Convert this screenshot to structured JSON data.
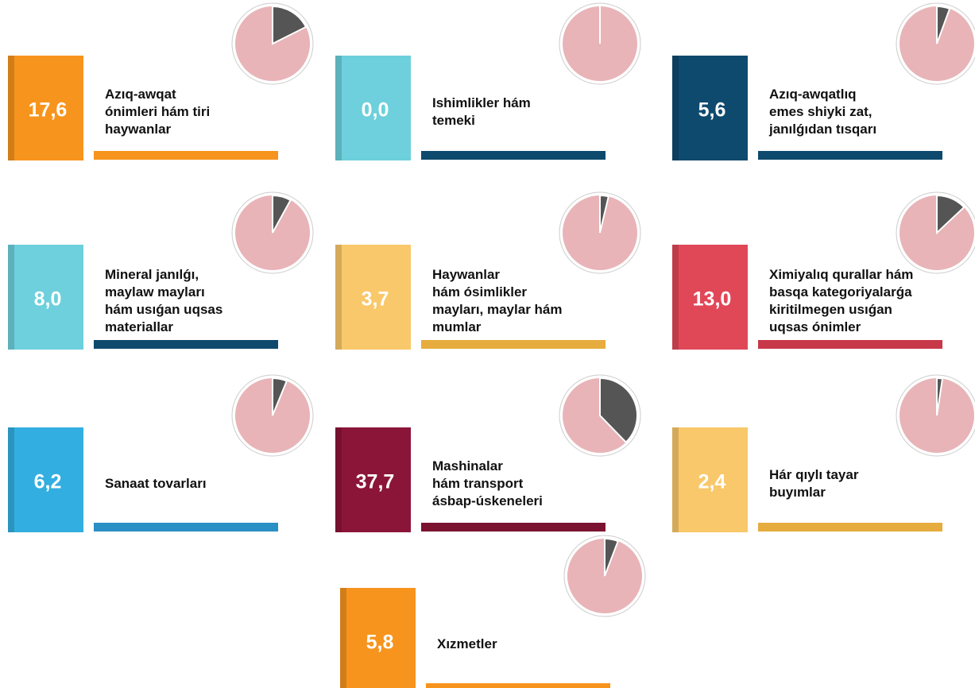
{
  "items": [
    {
      "value": 17.6,
      "value_label": "17,6",
      "label": [
        "Azıq-awqat",
        "ónimleri hám tiri",
        "haywanlar"
      ],
      "color": "#f7941d",
      "bar_color": "#f7941d"
    },
    {
      "value": 0.0,
      "value_label": "0,0",
      "label": [
        "Ishimlikler hám",
        "temeki"
      ],
      "color": "#6dd0dc",
      "bar_color": "#0e4a6e"
    },
    {
      "value": 5.6,
      "value_label": "5,6",
      "label": [
        "Azıq-awqatlıq",
        "emes shiyki zat,",
        "janılǵıdan tısqarı"
      ],
      "color": "#0e4a6e",
      "bar_color": "#0e4a6e"
    },
    {
      "value": 8.0,
      "value_label": "8,0",
      "label": [
        "Mineral janılǵı,",
        "maylaw mayları",
        "hám usıǵan uqsas",
        "materiallar"
      ],
      "color": "#6dd0dc",
      "bar_color": "#0e4a6e"
    },
    {
      "value": 3.7,
      "value_label": "3,7",
      "label": [
        "Haywanlar",
        "hám ósimlikler",
        "mayları, maylar hám",
        "mumlar"
      ],
      "color": "#f9c86a",
      "bar_color": "#e6ac3e"
    },
    {
      "value": 13.0,
      "value_label": "13,0",
      "label": [
        "Ximiyalıq qurallar hám",
        "basqa kategoriyalarǵa",
        "kiritilmegen usıǵan",
        "uqsas ónimler"
      ],
      "color": "#e04858",
      "bar_color": "#c73848"
    },
    {
      "value": 6.2,
      "value_label": "6,2",
      "label": [
        "Sanaat tovarları"
      ],
      "color": "#33aee0",
      "bar_color": "#2a8fc4"
    },
    {
      "value": 37.7,
      "value_label": "37,7",
      "label": [
        "Mashinalar",
        "hám transport",
        "ásbap-úskeneleri"
      ],
      "color": "#8b1538",
      "bar_color": "#7a1230"
    },
    {
      "value": 2.4,
      "value_label": "2,4",
      "label": [
        "Hár qıylı tayar",
        "buyımlar"
      ],
      "color": "#f9c86a",
      "bar_color": "#e6ac3e"
    },
    {
      "value": 5.8,
      "value_label": "5,8",
      "label": [
        "Xızmetler"
      ],
      "color": "#f7941d",
      "bar_color": "#f7941d"
    }
  ]
}
